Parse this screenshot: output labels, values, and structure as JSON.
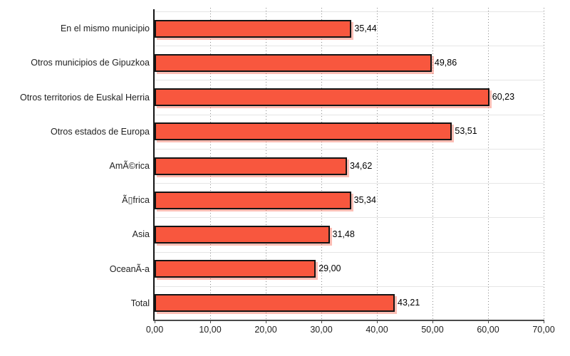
{
  "chart_data": {
    "type": "bar",
    "orientation": "horizontal",
    "title": "",
    "xlabel": "",
    "ylabel": "",
    "categories": [
      "En el mismo municipio",
      "Otros municipios de Gipuzkoa",
      "Otros territorios de Euskal Herria",
      "Otros estados de Europa",
      "AmÃ©rica",
      "Ã▯frica",
      "Asia",
      "OceanÃ-a",
      "Total"
    ],
    "values": [
      35.44,
      49.86,
      60.23,
      53.51,
      34.62,
      35.34,
      31.48,
      29.0,
      43.21
    ],
    "value_labels": [
      "35,44",
      "49,86",
      "60,23",
      "53,51",
      "34,62",
      "35,34",
      "31,48",
      "29,00",
      "43,21"
    ],
    "x_tick_labels": [
      "0,00",
      "10,00",
      "20,00",
      "30,00",
      "40,00",
      "50,00",
      "60,00",
      "70,00"
    ],
    "x_tick_values": [
      0,
      10,
      20,
      30,
      40,
      50,
      60,
      70
    ],
    "xlim": [
      0,
      70
    ],
    "grid": true,
    "gridline_style": "dotted-vertical",
    "legend": "none",
    "colors": {
      "bar_fill": "#f8573e",
      "bar_border": "#141414",
      "bar_shadow": "rgba(246,85,61,0.38)",
      "gridline": "#8a8a8a",
      "row_separator": "#e5e5e5",
      "value_axis_line": "#4a4a4a",
      "category_axis_line": "#141414",
      "text": "#222222",
      "background": "#ffffff"
    }
  }
}
